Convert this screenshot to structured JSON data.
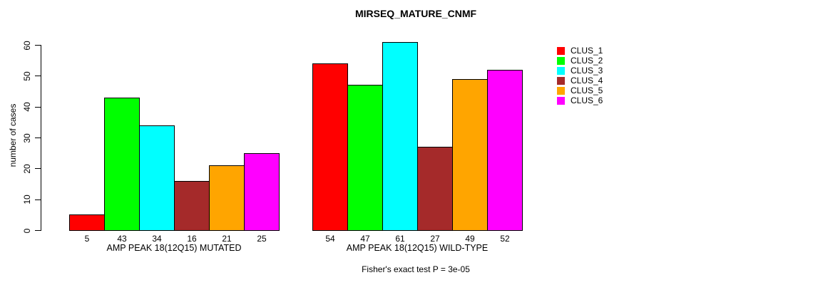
{
  "title": "MIRSEQ_MATURE_CNMF",
  "footer": "Fisher's exact test P = 3e-05",
  "chart_data": {
    "type": "bar",
    "title": "MIRSEQ_MATURE_CNMF",
    "xlabel": "",
    "ylabel": "number of cases",
    "ylim": [
      0,
      60
    ],
    "yticks": [
      0,
      10,
      20,
      30,
      40,
      50,
      60
    ],
    "grid": false,
    "legend_position": "right",
    "categories": [
      "AMP PEAK 18(12Q15) MUTATED",
      "AMP PEAK 18(12Q15) WILD-TYPE"
    ],
    "series": [
      {
        "name": "CLUS_1",
        "color": "#FF0000",
        "values": [
          5,
          54
        ]
      },
      {
        "name": "CLUS_2",
        "color": "#00FF00",
        "values": [
          43,
          47
        ]
      },
      {
        "name": "CLUS_3",
        "color": "#00FFFF",
        "values": [
          34,
          61
        ]
      },
      {
        "name": "CLUS_4",
        "color": "#A52A2A",
        "values": [
          16,
          27
        ]
      },
      {
        "name": "CLUS_5",
        "color": "#FFA500",
        "values": [
          21,
          49
        ]
      },
      {
        "name": "CLUS_6",
        "color": "#FF00FF",
        "values": [
          25,
          52
        ]
      }
    ],
    "bar_value_labels_shown": true,
    "annotation": "Fisher's exact test P = 3e-05"
  }
}
